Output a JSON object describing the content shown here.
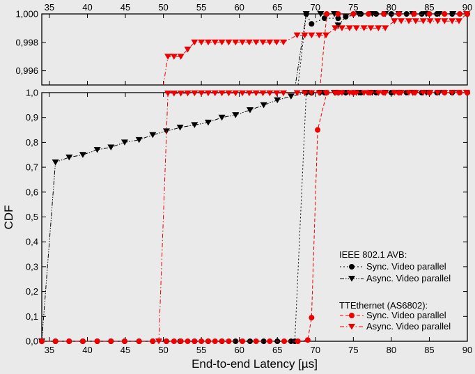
{
  "chart_data": {
    "type": "line",
    "xlabel": "End-to-end Latency [µs]",
    "ylabel": "CDF",
    "xlim": [
      34,
      90
    ],
    "x_ticks": [
      35,
      40,
      45,
      50,
      55,
      60,
      65,
      70,
      75,
      80,
      85,
      90
    ],
    "x_tick_labels": [
      "35",
      "40",
      "45",
      "50",
      "55",
      "60",
      "65",
      "70",
      "75",
      "80",
      "85",
      "90"
    ],
    "y_main": {
      "ylim": [
        0,
        1.0
      ],
      "ticks": [
        0,
        0.1,
        0.2,
        0.3,
        0.4,
        0.5,
        0.6,
        0.7,
        0.8,
        0.9,
        1.0
      ],
      "tick_labels": [
        "0,0",
        "0,1",
        "0,2",
        "0,3",
        "0,4",
        "0,5",
        "0,6",
        "0,7",
        "0,8",
        "0,9",
        "1,0"
      ]
    },
    "y_zoom": {
      "ylim": [
        0.995,
        1.0
      ],
      "ticks": [
        0.996,
        0.998,
        1.0
      ],
      "tick_labels": [
        "0,996",
        "0,998",
        "1,000"
      ]
    },
    "legend_groups": [
      {
        "title": "IEEE 802.1 AVB:",
        "series": [
          0,
          1
        ]
      },
      {
        "title": "TTEthernet (AS6802):",
        "series": [
          2,
          3
        ]
      }
    ],
    "legend_position": "bottom-right",
    "series": [
      {
        "name": "Sync. Video parallel",
        "color": "#000000",
        "marker": "circle",
        "dash": "dot",
        "x": [
          34.0,
          35.8,
          37.6,
          39.4,
          41.3,
          43.1,
          44.9,
          46.8,
          48.6,
          50.4,
          52.2,
          54.1,
          55.9,
          57.7,
          59.5,
          61.4,
          63.2,
          65.0,
          66.8,
          67.3,
          68.8,
          69.5,
          71.2,
          73.0,
          74.0,
          76.0,
          78.0,
          80.0,
          82.0,
          84.0,
          86.0,
          88.0,
          90.0
        ],
        "y": [
          0,
          0,
          0,
          0,
          0,
          0,
          0,
          0,
          0,
          0,
          0,
          0,
          0,
          0,
          0,
          0,
          0,
          0,
          0,
          0,
          1.0,
          0.9993,
          0.9997,
          0.9997,
          0.9998,
          1.0,
          1.0,
          1.0,
          1.0,
          1.0,
          1.0,
          1.0,
          1.0
        ]
      },
      {
        "name": "Async. Video parallel",
        "color": "#000000",
        "marker": "triangle-down",
        "dash": "dash-dot-dot",
        "x": [
          34.0,
          35.8,
          37.6,
          39.4,
          41.3,
          43.1,
          44.9,
          46.8,
          48.6,
          50.4,
          52.2,
          54.1,
          55.9,
          57.7,
          59.5,
          61.4,
          63.2,
          65.0,
          66.8,
          68.8,
          70.7,
          72.5,
          73.0,
          74.0,
          75.7,
          77.5,
          79.2,
          81.0,
          82.8,
          84.6,
          86.3,
          88.1,
          89.9
        ],
        "y": [
          0,
          0.72,
          0.74,
          0.75,
          0.77,
          0.78,
          0.8,
          0.81,
          0.83,
          0.845,
          0.86,
          0.87,
          0.88,
          0.9,
          0.91,
          0.93,
          0.95,
          0.97,
          0.985,
          1.0,
          1.0,
          1.0,
          0.9992,
          0.9998,
          1.0,
          1.0,
          1.0,
          1.0,
          1.0,
          1.0,
          1.0,
          1.0,
          1.0
        ]
      },
      {
        "name": "Sync. Video parallel",
        "color": "#ee0000",
        "marker": "circle",
        "dash": "dash",
        "x": [
          34.0,
          35.8,
          37.6,
          39.4,
          41.3,
          43.1,
          44.9,
          46.8,
          48.6,
          50.4,
          51.4,
          52.3,
          53.2,
          54.1,
          55.0,
          55.9,
          56.8,
          57.7,
          58.6,
          60.4,
          62.2,
          64.0,
          65.9,
          67.7,
          69.0,
          69.5,
          70.3,
          71.5,
          73.0,
          75.0,
          77.0,
          79.0,
          81.0,
          83.0,
          85.0,
          87.0,
          89.0,
          90.0
        ],
        "y": [
          0,
          0,
          0,
          0,
          0,
          0,
          0,
          0,
          0,
          0,
          0,
          0,
          0,
          0,
          0,
          0,
          0,
          0,
          0,
          0,
          0,
          0,
          0,
          0,
          0.005,
          0.095,
          0.85,
          1.0,
          1.0,
          1.0,
          1.0,
          1.0,
          1.0,
          1.0,
          1.0,
          1.0,
          1.0,
          1.0
        ]
      },
      {
        "name": "Async. Video parallel",
        "color": "#ee0000",
        "marker": "triangle-down",
        "dash": "dash-dot",
        "x": [
          49.4,
          50.6,
          51.4,
          52.3,
          53.2,
          54.1,
          55.0,
          55.9,
          56.8,
          57.7,
          58.6,
          59.5,
          60.4,
          61.3,
          62.2,
          63.1,
          64.0,
          64.9,
          65.8,
          67.6,
          68.6,
          69.5,
          70.5,
          71.4,
          72.6,
          73.5,
          74.5,
          75.4,
          76.4,
          77.3,
          78.3,
          79.2,
          80.4,
          81.3,
          82.3,
          83.2,
          84.2,
          85.1,
          86.1,
          87.0,
          88.0,
          88.9,
          89.9
        ],
        "y": [
          0,
          0.997,
          0.997,
          0.997,
          0.9975,
          0.998,
          0.998,
          0.998,
          0.998,
          0.998,
          0.998,
          0.998,
          0.998,
          0.998,
          0.998,
          0.998,
          0.998,
          0.998,
          0.998,
          0.9985,
          0.9985,
          0.9985,
          0.9985,
          0.9985,
          0.999,
          0.999,
          0.999,
          0.999,
          0.999,
          0.999,
          0.999,
          0.999,
          0.9995,
          0.9995,
          0.9995,
          0.9995,
          0.9995,
          0.9995,
          0.9995,
          0.9995,
          0.9995,
          0.9995,
          1.0
        ]
      }
    ]
  }
}
